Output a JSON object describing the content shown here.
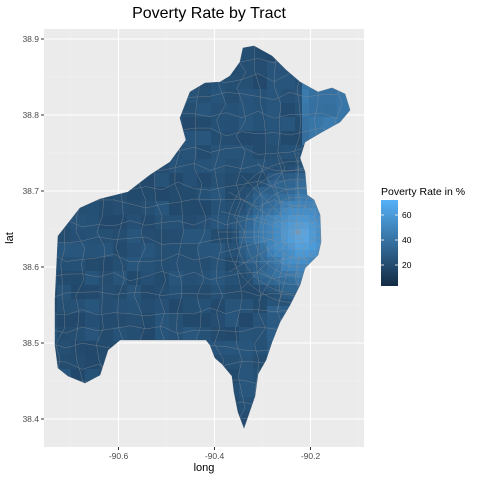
{
  "chart_data": {
    "type": "choropleth map",
    "title": "Poverty Rate by Tract",
    "xlabel": "long",
    "ylabel": "lat",
    "x_ticks": [
      "-90.6",
      "-90.4",
      "-90.2"
    ],
    "x_tick_values": [
      -90.6,
      -90.4,
      -90.2
    ],
    "y_ticks": [
      "38.4",
      "38.5",
      "38.6",
      "38.7",
      "38.8",
      "38.9"
    ],
    "y_tick_values": [
      38.4,
      38.5,
      38.6,
      38.7,
      38.8,
      38.9
    ],
    "xlim": [
      -90.74,
      -90.1
    ],
    "ylim": [
      38.37,
      38.91
    ],
    "grid": true,
    "legend": {
      "title": "Poverty Rate in %",
      "ticks": [
        "60",
        "40",
        "20"
      ],
      "tick_values": [
        60,
        40,
        20
      ],
      "range": [
        2,
        68
      ],
      "low_color": "#132b43",
      "high_color": "#56b1f7",
      "placement": "right"
    }
  },
  "colors": {
    "panel": "#ebebeb",
    "grid_major": "#ffffff",
    "grid_minor": "#f2f2f2",
    "boundary": "#7f7f7f"
  }
}
